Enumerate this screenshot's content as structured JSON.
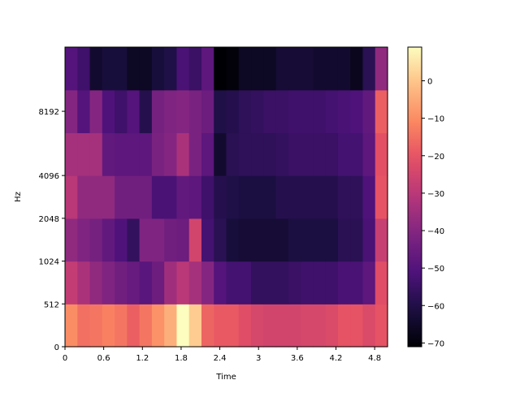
{
  "chart_data": {
    "type": "heatmap",
    "title": "",
    "xlabel": "Time",
    "ylabel": "Hz",
    "colormap": "magma",
    "x_ticks": [
      "0",
      "0.6",
      "1.2",
      "1.8",
      "2.4",
      "3",
      "3.6",
      "4.2",
      "4.8"
    ],
    "x_tick_values": [
      0,
      0.6,
      1.2,
      1.8,
      2.4,
      3.0,
      3.6,
      4.2,
      4.8
    ],
    "xlim": [
      0,
      5.0
    ],
    "y_ticks": [
      "0",
      "512",
      "1024",
      "2048",
      "4096",
      "8192"
    ],
    "y_tick_bands": [
      0,
      1,
      2,
      3,
      4,
      5
    ],
    "n_time_frames": 26,
    "n_freq_bands": 7,
    "values_dB": [
      [
        -10,
        -15,
        -14,
        -12,
        -14,
        -18,
        -14,
        -9,
        -4,
        9,
        1,
        -17,
        -19,
        -19,
        -22,
        -24,
        -25,
        -25,
        -25,
        -24,
        -24,
        -23,
        -20,
        -20,
        -23,
        -20
      ],
      [
        -28,
        -33,
        -38,
        -41,
        -44,
        -46,
        -49,
        -45,
        -35,
        -30,
        -34,
        -40,
        -50,
        -53,
        -53,
        -56,
        -56,
        -56,
        -55,
        -54,
        -54,
        -54,
        -52,
        -52,
        -48,
        -22
      ],
      [
        -38,
        -41,
        -43,
        -47,
        -51,
        -56,
        -41,
        -41,
        -44,
        -45,
        -25,
        -53,
        -58,
        -62,
        -63,
        -63,
        -63,
        -63,
        -61,
        -61,
        -61,
        -61,
        -58,
        -58,
        -52,
        -27
      ],
      [
        -30,
        -38,
        -38,
        -38,
        -44,
        -44,
        -44,
        -52,
        -52,
        -47,
        -48,
        -54,
        -59,
        -60,
        -61,
        -61,
        -61,
        -59,
        -59,
        -59,
        -59,
        -59,
        -57,
        -57,
        -51,
        -20
      ],
      [
        -34,
        -34,
        -34,
        -47,
        -48,
        -48,
        -48,
        -42,
        -40,
        -33,
        -42,
        -48,
        -64,
        -58,
        -57,
        -57,
        -57,
        -56,
        -55,
        -55,
        -55,
        -55,
        -53,
        -53,
        -48,
        -21
      ],
      [
        -40,
        -50,
        -40,
        -51,
        -54,
        -50,
        -59,
        -43,
        -41,
        -40,
        -42,
        -45,
        -60,
        -59,
        -57,
        -56,
        -55,
        -55,
        -54,
        -54,
        -54,
        -53,
        -52,
        -51,
        -47,
        -18
      ],
      [
        -50,
        -54,
        -64,
        -62,
        -62,
        -66,
        -66,
        -62,
        -60,
        -52,
        -55,
        -48,
        -71,
        -70,
        -66,
        -66,
        -66,
        -63,
        -63,
        -63,
        -64,
        -64,
        -64,
        -67,
        -58,
        -38
      ]
    ],
    "colorbar": {
      "vmin": -71,
      "vmax": 9,
      "ticks": [
        0,
        -10,
        -20,
        -30,
        -40,
        -50,
        -60,
        -70
      ],
      "tick_labels": [
        "0",
        "−10",
        "−20",
        "−30",
        "−40",
        "−50",
        "−60",
        "−70"
      ]
    }
  }
}
